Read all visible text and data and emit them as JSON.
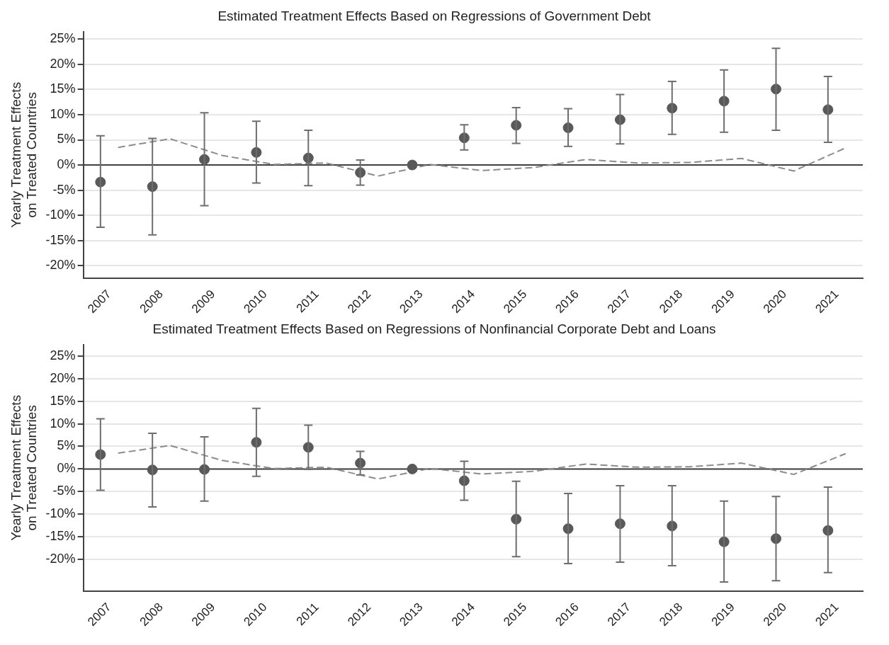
{
  "chart_data": [
    {
      "type": "scatter",
      "title": "Estimated Treatment Effects Based on Regressions of Government Debt",
      "ylabel": "Yearly Treatment Effects\non Treated Countries",
      "xlim": [
        2006.5,
        2021.5
      ],
      "xticks": [
        2007,
        2008,
        2009,
        2010,
        2011,
        2012,
        2013,
        2014,
        2015,
        2016,
        2017,
        2018,
        2019,
        2020,
        2021
      ],
      "ylim": [
        -22.5,
        26.5
      ],
      "yticks": [
        {
          "value": -20,
          "label": "-20%"
        },
        {
          "value": -15,
          "label": "-15%"
        },
        {
          "value": -10,
          "label": "-10%"
        },
        {
          "value": -5,
          "label": "-5%"
        },
        {
          "value": 0,
          "label": "0%"
        },
        {
          "value": 5,
          "label": "5%"
        },
        {
          "value": 10,
          "label": "10%"
        },
        {
          "value": 15,
          "label": "15%"
        },
        {
          "value": 20,
          "label": "20%"
        },
        {
          "value": 25,
          "label": "25%"
        }
      ],
      "grid": "y",
      "legend": false,
      "ref_lines": [
        {
          "axis": "y",
          "value": 0,
          "color": "#404040"
        }
      ],
      "series": [
        {
          "color": "#595959",
          "marker": "circle",
          "x": [
            2006.83,
            2007.83,
            2008.83,
            2009.83,
            2010.83,
            2011.83,
            2012.83,
            2013.83,
            2014.83,
            2015.83,
            2016.83,
            2017.83,
            2018.83,
            2019.83,
            2020.83
          ],
          "values": [
            -3.4,
            -4.3,
            1.1,
            2.5,
            1.4,
            -1.5,
            0,
            5.4,
            7.9,
            7.4,
            9.0,
            11.3,
            12.7,
            15.1,
            11.0
          ],
          "errors": [
            [
              -12.4,
              5.8
            ],
            [
              -13.9,
              5.3
            ],
            [
              -8.1,
              10.4
            ],
            [
              -3.6,
              8.7
            ],
            [
              -4.1,
              6.9
            ],
            [
              -4.0,
              1.0
            ],
            null,
            [
              3.0,
              8.0
            ],
            [
              4.3,
              11.4
            ],
            [
              3.7,
              11.2
            ],
            [
              4.2,
              14.0
            ],
            [
              6.1,
              16.6
            ],
            [
              6.5,
              18.9
            ],
            [
              6.9,
              23.2
            ],
            [
              4.5,
              17.6
            ]
          ]
        },
        {
          "type": "line",
          "color": "#8c8c8c",
          "line_style": "dashed",
          "marker": "none",
          "x": [
            2007.17,
            2008.17,
            2009.17,
            2010.17,
            2011.17,
            2012.17,
            2013.17,
            2014.17,
            2015.17,
            2016.17,
            2017.17,
            2018.17,
            2019.17,
            2020.17,
            2021.17
          ],
          "values": [
            3.5,
            5.2,
            1.9,
            0.1,
            0.4,
            -2.2,
            0.1,
            -1.1,
            -0.5,
            1.1,
            0.4,
            0.5,
            1.3,
            -1.2,
            3.4
          ]
        }
      ]
    },
    {
      "type": "scatter",
      "title": "Estimated Treatment Effects Based on Regressions of Nonfinancial Corporate Debt and Loans",
      "ylabel": "Yearly Treatment Effects\non Treated Countries",
      "xlim": [
        2006.5,
        2021.5
      ],
      "xticks": [
        2007,
        2008,
        2009,
        2010,
        2011,
        2012,
        2013,
        2014,
        2015,
        2016,
        2017,
        2018,
        2019,
        2020,
        2021
      ],
      "ylim": [
        -27,
        27.5
      ],
      "yticks": [
        {
          "value": -20,
          "label": "-20%"
        },
        {
          "value": -15,
          "label": "-15%"
        },
        {
          "value": -10,
          "label": "-10%"
        },
        {
          "value": -5,
          "label": "-5%"
        },
        {
          "value": 0,
          "label": "0%"
        },
        {
          "value": 5,
          "label": "5%"
        },
        {
          "value": 10,
          "label": "10%"
        },
        {
          "value": 15,
          "label": "15%"
        },
        {
          "value": 20,
          "label": "20%"
        },
        {
          "value": 25,
          "label": "25%"
        }
      ],
      "grid": "y",
      "legend": false,
      "ref_lines": [
        {
          "axis": "y",
          "value": 0,
          "color": "#404040"
        }
      ],
      "series": [
        {
          "color": "#595959",
          "marker": "circle",
          "x": [
            2006.83,
            2007.83,
            2008.83,
            2009.83,
            2010.83,
            2011.83,
            2012.83,
            2013.83,
            2014.83,
            2015.83,
            2016.83,
            2017.83,
            2018.83,
            2019.83,
            2020.83
          ],
          "values": [
            3.2,
            -0.2,
            -0.1,
            5.9,
            4.8,
            1.3,
            0,
            -2.6,
            -11.1,
            -13.2,
            -12.1,
            -12.6,
            -16.1,
            -15.4,
            -13.6
          ],
          "errors": [
            [
              -4.7,
              11.1
            ],
            [
              -8.4,
              7.9
            ],
            [
              -7.1,
              7.1
            ],
            [
              -1.6,
              13.4
            ],
            [
              -0.1,
              9.7
            ],
            [
              -1.3,
              3.9
            ],
            null,
            [
              -6.9,
              1.7
            ],
            [
              -19.4,
              -2.7
            ],
            [
              -20.9,
              -5.4
            ],
            [
              -20.6,
              -3.7
            ],
            [
              -21.4,
              -3.7
            ],
            [
              -25.0,
              -7.1
            ],
            [
              -24.7,
              -6.1
            ],
            [
              -22.9,
              -4.0
            ]
          ]
        },
        {
          "type": "line",
          "color": "#8c8c8c",
          "line_style": "dashed",
          "marker": "none",
          "x": [
            2007.17,
            2008.17,
            2009.17,
            2010.17,
            2011.17,
            2012.17,
            2013.17,
            2014.17,
            2015.17,
            2016.17,
            2017.17,
            2018.17,
            2019.17,
            2020.17,
            2021.17
          ],
          "values": [
            3.5,
            5.2,
            1.9,
            0.1,
            0.4,
            -2.2,
            0.1,
            -1.1,
            -0.5,
            1.1,
            0.4,
            0.5,
            1.3,
            -1.2,
            3.4
          ]
        }
      ]
    }
  ]
}
